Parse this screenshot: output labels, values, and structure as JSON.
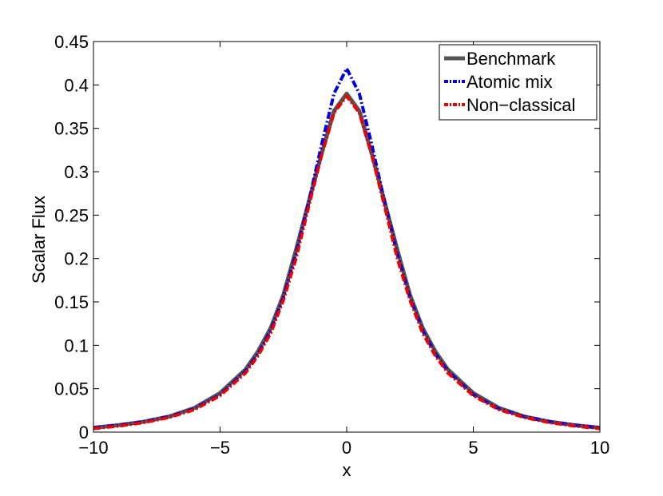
{
  "chart_data": {
    "type": "line",
    "title": "",
    "xlabel": "x",
    "ylabel": "Scalar Flux",
    "xlim": [
      -10,
      10
    ],
    "ylim": [
      0,
      0.45
    ],
    "xticks": [
      -10,
      -5,
      0,
      5,
      10
    ],
    "xtick_labels": [
      "−10",
      "−5",
      "0",
      "5",
      "10"
    ],
    "yticks": [
      0,
      0.05,
      0.1,
      0.15,
      0.2,
      0.25,
      0.3,
      0.35,
      0.4,
      0.45
    ],
    "ytick_labels": [
      "0",
      "0.05",
      "0.1",
      "0.15",
      "0.2",
      "0.25",
      "0.3",
      "0.35",
      "0.4",
      "0.45"
    ],
    "grid": false,
    "legend_position": "top-right",
    "series": [
      {
        "name": "Benchmark",
        "color": "#555555",
        "style": "solid",
        "x": [
          -10,
          -9,
          -8,
          -7,
          -6,
          -5,
          -4,
          -3.5,
          -3,
          -2.5,
          -2,
          -1.5,
          -1,
          -0.5,
          0,
          0.5,
          1,
          1.5,
          2,
          2.5,
          3,
          3.5,
          4,
          5,
          6,
          7,
          8,
          9,
          10
        ],
        "y": [
          0.005,
          0.008,
          0.012,
          0.018,
          0.028,
          0.045,
          0.072,
          0.093,
          0.12,
          0.158,
          0.21,
          0.265,
          0.32,
          0.37,
          0.39,
          0.37,
          0.32,
          0.265,
          0.21,
          0.158,
          0.12,
          0.093,
          0.072,
          0.045,
          0.028,
          0.018,
          0.012,
          0.008,
          0.005
        ]
      },
      {
        "name": "Atomic mix",
        "color": "#0000dd",
        "style": "dash-dot",
        "x": [
          -10,
          -9,
          -8,
          -7,
          -6,
          -5,
          -4,
          -3.5,
          -3,
          -2.5,
          -2,
          -1.5,
          -1,
          -0.5,
          0,
          0.5,
          1,
          1.5,
          2,
          2.5,
          3,
          3.5,
          4,
          5,
          6,
          7,
          8,
          9,
          10
        ],
        "y": [
          0.005,
          0.008,
          0.012,
          0.018,
          0.027,
          0.043,
          0.07,
          0.09,
          0.117,
          0.155,
          0.205,
          0.265,
          0.33,
          0.39,
          0.419,
          0.39,
          0.33,
          0.265,
          0.205,
          0.155,
          0.117,
          0.09,
          0.07,
          0.043,
          0.027,
          0.018,
          0.012,
          0.008,
          0.005
        ]
      },
      {
        "name": "Non−classical",
        "color": "#ee0000",
        "style": "dash-dot",
        "x": [
          -10,
          -9,
          -8,
          -7,
          -6,
          -5,
          -4,
          -3.5,
          -3,
          -2.5,
          -2,
          -1.5,
          -1,
          -0.5,
          0,
          0.5,
          1,
          1.5,
          2,
          2.5,
          3,
          3.5,
          4,
          5,
          6,
          7,
          8,
          9,
          10
        ],
        "y": [
          0.004,
          0.007,
          0.011,
          0.017,
          0.026,
          0.042,
          0.068,
          0.088,
          0.114,
          0.152,
          0.2,
          0.26,
          0.318,
          0.368,
          0.387,
          0.368,
          0.318,
          0.26,
          0.2,
          0.152,
          0.114,
          0.088,
          0.068,
          0.042,
          0.026,
          0.017,
          0.011,
          0.007,
          0.004
        ]
      }
    ]
  }
}
